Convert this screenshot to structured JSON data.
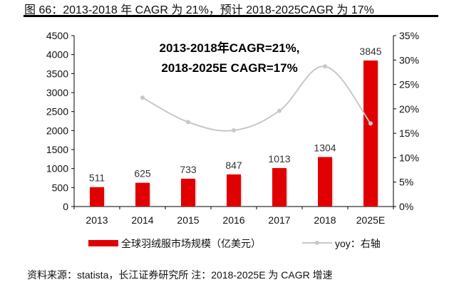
{
  "title": "图 66：2013-2018 年 CAGR 为 21%，预计 2018-2025CAGR 为 17%",
  "source": "资料来源：statista，长江证券研究所  注：2018-2025E 为 CAGR 增速",
  "chart_data": {
    "type": "bar+line",
    "categories": [
      "2013",
      "2014",
      "2015",
      "2016",
      "2017",
      "2018",
      "2025E"
    ],
    "series": [
      {
        "name": "全球羽绒服市场规模（亿美元）",
        "type": "bar",
        "axis": "left",
        "color": "#e00000",
        "values": [
          511,
          625,
          733,
          847,
          1013,
          1304,
          3845
        ]
      },
      {
        "name": "yoy：右轴",
        "type": "line",
        "axis": "right",
        "color": "#c8c8c8",
        "values": [
          null,
          22.3,
          17.3,
          15.6,
          19.6,
          28.7,
          17.0
        ]
      }
    ],
    "left_axis": {
      "min": 0,
      "max": 4500,
      "ticks": [
        "0",
        "500",
        "1000",
        "1500",
        "2000",
        "2500",
        "3000",
        "3500",
        "4000",
        "4500"
      ]
    },
    "right_axis": {
      "min": 0,
      "max": 35,
      "ticks": [
        "0%",
        "5%",
        "10%",
        "15%",
        "20%",
        "25%",
        "30%",
        "35%"
      ]
    },
    "annotations": [
      "2013-2018年CAGR=21%,",
      "2018-2025E  CAGR=17%"
    ],
    "legend_position": "bottom",
    "grid": false
  }
}
